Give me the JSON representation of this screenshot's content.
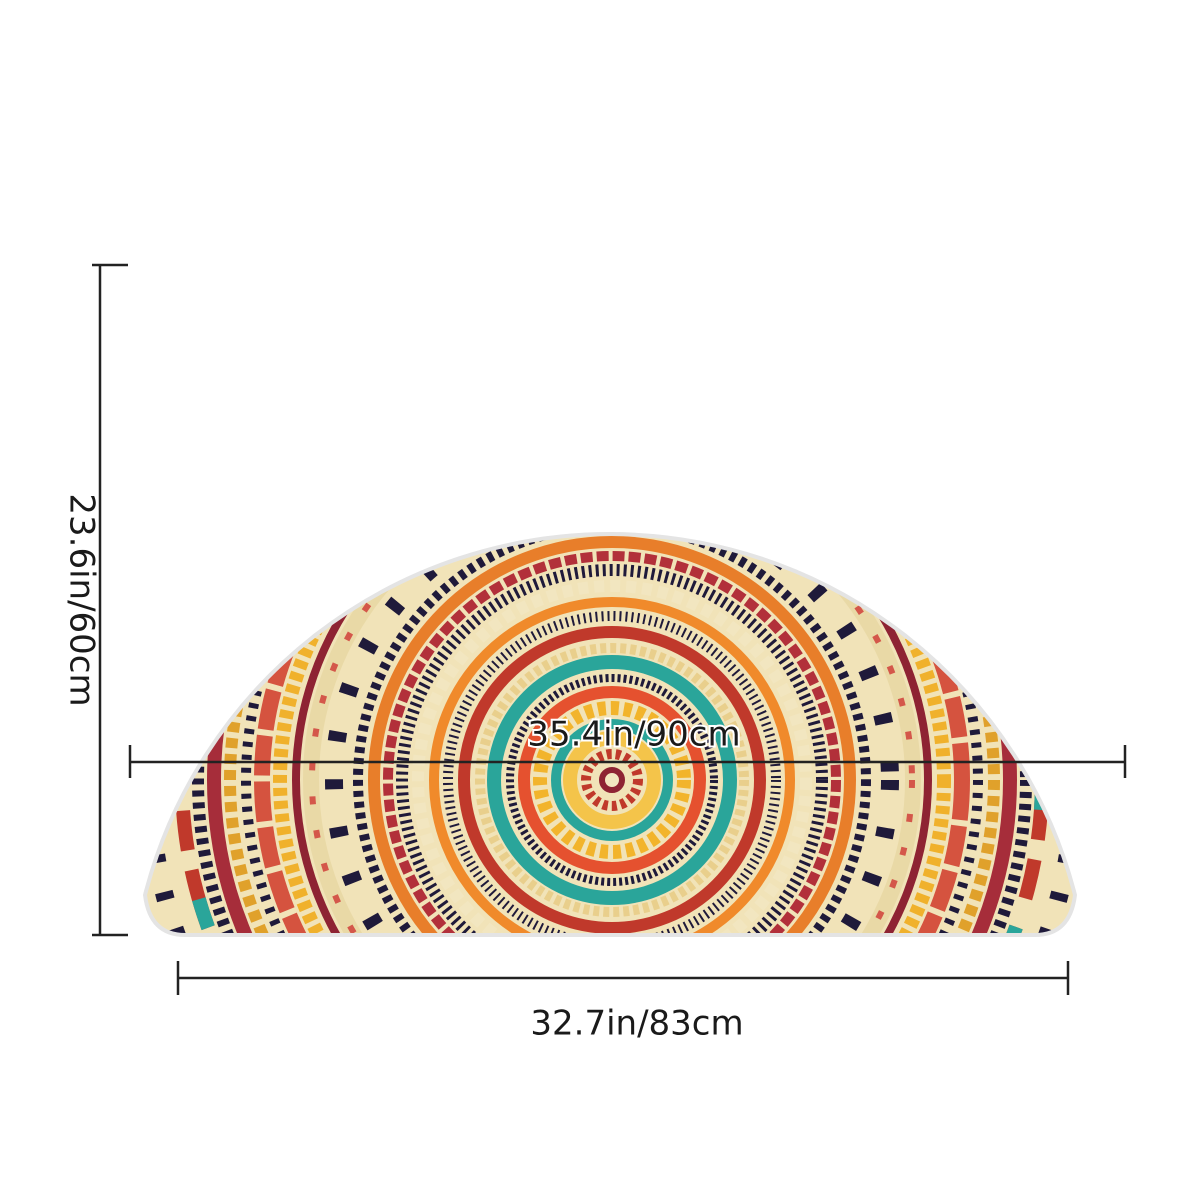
{
  "dimensions": {
    "height": "23.6in/60cm",
    "diameter": "35.4in/90cm",
    "width": "32.7in/83cm"
  }
}
